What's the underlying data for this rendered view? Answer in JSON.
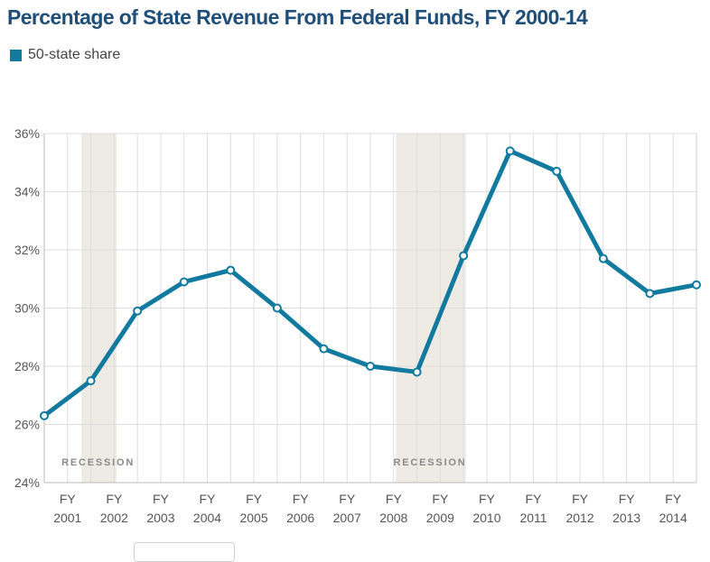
{
  "title": "Percentage of State Revenue From Federal Funds, FY 2000-14",
  "legend": {
    "label": "50-state share",
    "color": "#117a9e"
  },
  "colors": {
    "line": "#117a9e",
    "recession": "#eeebe5",
    "grid": "#dddddd",
    "title": "#1f4e79"
  },
  "chart_data": {
    "type": "line",
    "title": "Percentage of State Revenue From Federal Funds, FY 2000-14",
    "xlabel": "",
    "ylabel": "",
    "ylim": [
      24,
      36
    ],
    "y_ticks": [
      "24%",
      "26%",
      "28%",
      "30%",
      "32%",
      "34%",
      "36%"
    ],
    "y_tick_values": [
      24,
      26,
      28,
      30,
      32,
      34,
      36
    ],
    "categories": [
      [
        "FY",
        "2001"
      ],
      [
        "FY",
        "2002"
      ],
      [
        "FY",
        "2003"
      ],
      [
        "FY",
        "2004"
      ],
      [
        "FY",
        "2005"
      ],
      [
        "FY",
        "2006"
      ],
      [
        "FY",
        "2007"
      ],
      [
        "FY",
        "2008"
      ],
      [
        "FY",
        "2009"
      ],
      [
        "FY",
        "2010"
      ],
      [
        "FY",
        "2011"
      ],
      [
        "FY",
        "2012"
      ],
      [
        "FY",
        "2013"
      ],
      [
        "FY",
        "2014"
      ]
    ],
    "x": [
      2000,
      2000.5,
      2001,
      2001.5,
      2002,
      2002.5,
      2003,
      2003.5,
      2004,
      2004.5,
      2005,
      2005.5,
      2006,
      2006.5,
      2007,
      2007.5,
      2008,
      2008.5,
      2009,
      2009.5,
      2010,
      2010.5,
      2011,
      2011.5,
      2012,
      2012.5,
      2013,
      2013.5,
      2014
    ],
    "series": [
      {
        "name": "50-state share",
        "points": [
          {
            "x": 2000.5,
            "y": 26.3
          },
          {
            "x": 2001.5,
            "y": 27.5
          },
          {
            "x": 2002.5,
            "y": 29.9
          },
          {
            "x": 2003.5,
            "y": 30.9
          },
          {
            "x": 2004.5,
            "y": 31.3
          },
          {
            "x": 2005.5,
            "y": 30.0
          },
          {
            "x": 2006.5,
            "y": 28.6
          },
          {
            "x": 2007.5,
            "y": 28.0
          },
          {
            "x": 2008.5,
            "y": 27.8
          },
          {
            "x": 2009.5,
            "y": 31.8
          },
          {
            "x": 2010.5,
            "y": 35.4
          },
          {
            "x": 2011.5,
            "y": 34.7
          },
          {
            "x": 2012.5,
            "y": 31.7
          },
          {
            "x": 2013.5,
            "y": 30.5
          },
          {
            "x": 2014.5,
            "y": 30.8
          }
        ]
      }
    ],
    "recessions": [
      {
        "label": "RECESSION",
        "start": 2001.3,
        "end": 2002.05
      },
      {
        "label": "RECESSION",
        "start": 2008.05,
        "end": 2009.55
      }
    ],
    "grid": true
  }
}
